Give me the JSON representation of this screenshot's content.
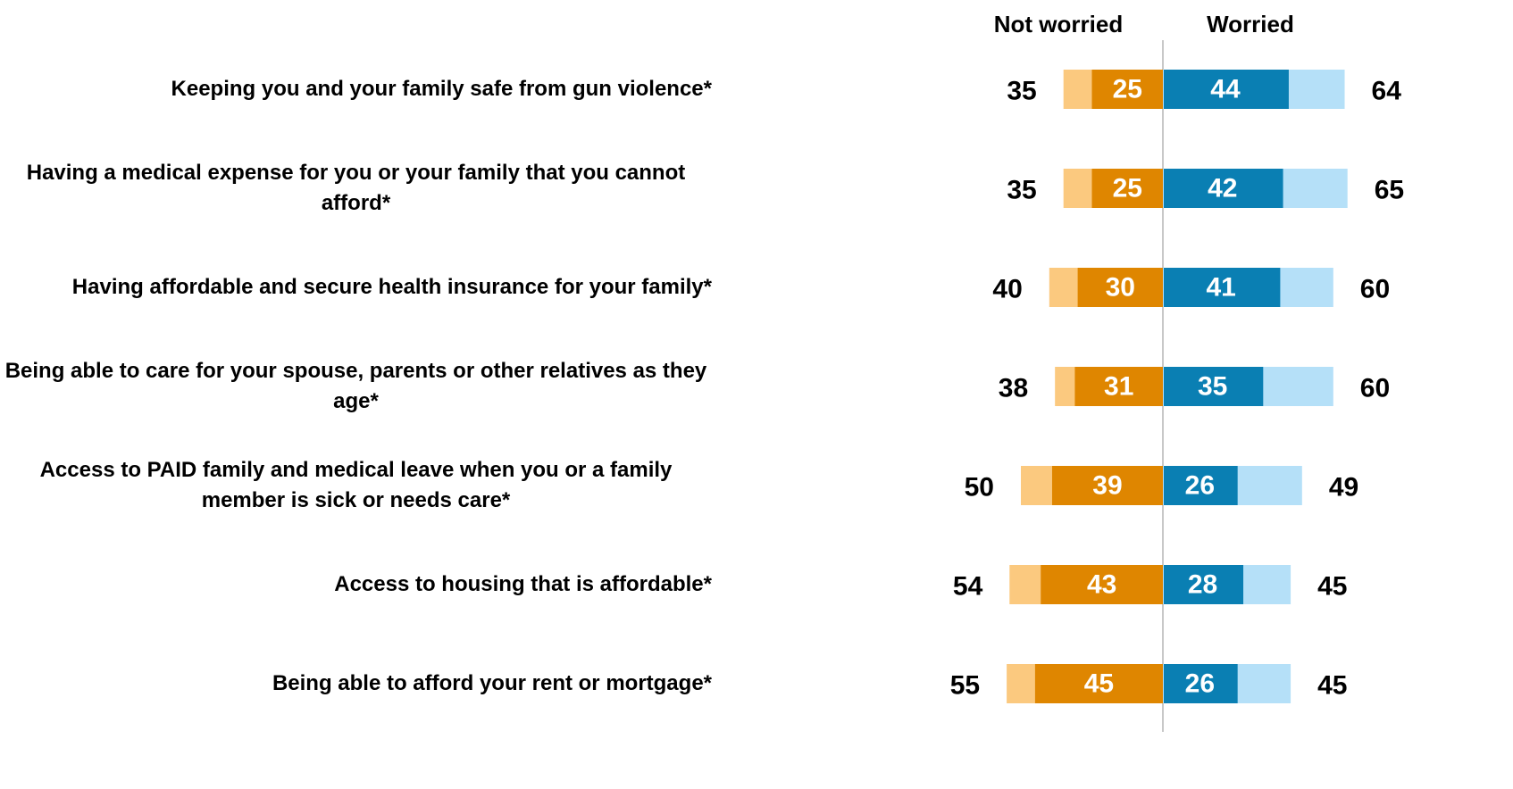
{
  "chart_data": {
    "type": "diverging_bar",
    "categories": [
      "Keeping you and your family safe from gun violence*",
      "Having a medical expense for you or your family that you cannot afford*",
      "Having affordable and secure health insurance for your family*",
      "Being able to care for your spouse, parents or other relatives as they age*",
      "Access to PAID family and medical leave when you or a family member is sick or needs care*",
      "Access to housing that is affordable*",
      "Being able to afford your rent or mortgage*"
    ],
    "series": [
      {
        "name": "Not worried",
        "color": "#fbc97f",
        "inner_color": "#df8600",
        "values": [
          35,
          35,
          40,
          38,
          50,
          54,
          55
        ],
        "inner_values": [
          25,
          25,
          30,
          31,
          39,
          43,
          45
        ]
      },
      {
        "name": "Worried",
        "color": "#b5e0f8",
        "inner_color": "#0a7fb3",
        "values": [
          64,
          65,
          60,
          60,
          49,
          45,
          45
        ],
        "inner_values": [
          44,
          42,
          41,
          35,
          26,
          28,
          26
        ]
      }
    ]
  }
}
